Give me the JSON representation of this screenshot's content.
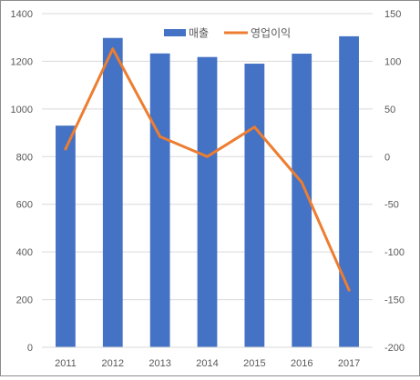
{
  "chart_data": {
    "type": "bar+line",
    "categories": [
      "2011",
      "2012",
      "2013",
      "2014",
      "2015",
      "2016",
      "2017"
    ],
    "series": [
      {
        "name": "매출",
        "type": "bar",
        "axis": "left",
        "color": "#4472C4",
        "values": [
          930,
          1298,
          1233,
          1218,
          1190,
          1232,
          1305
        ]
      },
      {
        "name": "영업이익",
        "type": "line",
        "axis": "right",
        "color": "#ED7D31",
        "values": [
          8,
          113,
          21,
          0,
          31,
          -27,
          -140
        ]
      }
    ],
    "y_left": {
      "min": 0,
      "max": 1400,
      "step": 200,
      "ticks": [
        "0",
        "200",
        "400",
        "600",
        "800",
        "1000",
        "1200",
        "1400"
      ]
    },
    "y_right": {
      "min": -200,
      "max": 150,
      "step": 50,
      "ticks": [
        "-200",
        "-150",
        "-100",
        "-50",
        "0",
        "50",
        "100",
        "150"
      ]
    },
    "grid": true,
    "legend_position": "top-center",
    "gridline_color": "#d9d9d9",
    "axis_line_color": "#d9d9d9",
    "tick_label_color": "#595959"
  }
}
